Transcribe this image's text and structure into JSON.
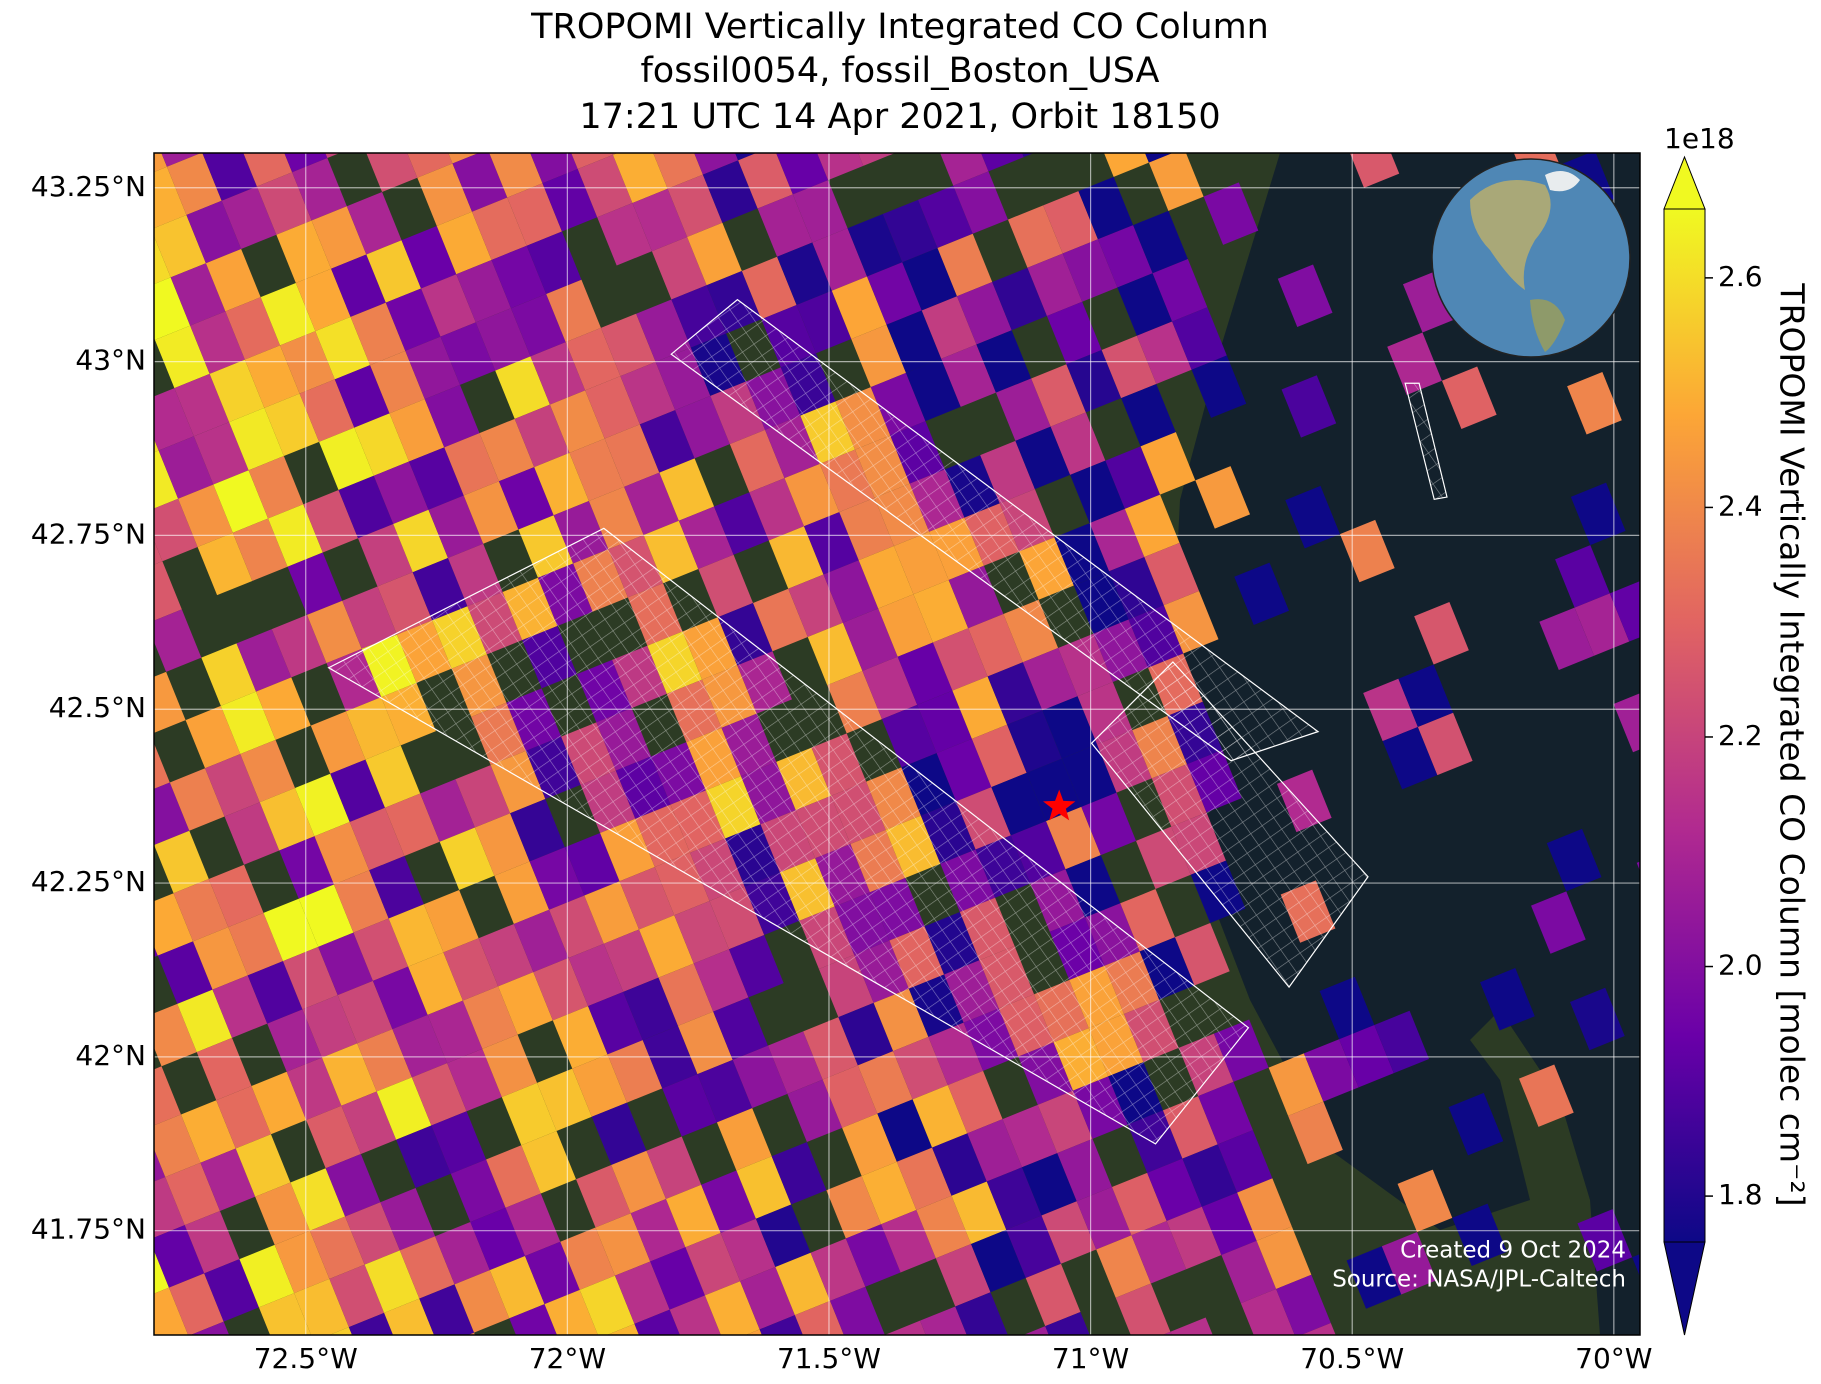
{
  "title_lines": [
    "TROPOMI Vertically Integrated CO Column",
    "fossil0054, fossil_Boston_USA",
    "17:21 UTC 14 Apr 2021, Orbit 18150"
  ],
  "map": {
    "xlim": [
      -72.79,
      -69.95
    ],
    "ylim": [
      41.6,
      43.3
    ],
    "xticks": [
      {
        "value": -72.5,
        "label": "72.5°W"
      },
      {
        "value": -72,
        "label": "72°W"
      },
      {
        "value": -71.5,
        "label": "71.5°W"
      },
      {
        "value": -71,
        "label": "71°W"
      },
      {
        "value": -70.5,
        "label": "70.5°W"
      },
      {
        "value": -70,
        "label": "70°W"
      }
    ],
    "yticks": [
      {
        "value": 41.75,
        "label": "41.75°N"
      },
      {
        "value": 42,
        "label": "42°N"
      },
      {
        "value": 42.25,
        "label": "42.25°N"
      },
      {
        "value": 42.5,
        "label": "42.5°N"
      },
      {
        "value": 42.75,
        "label": "42.75°N"
      },
      {
        "value": 43,
        "label": "43°N"
      },
      {
        "value": 43.25,
        "label": "43.25°N"
      }
    ],
    "grid": true,
    "site": {
      "lon": -71.06,
      "lat": 42.36,
      "color": "#ff0000"
    }
  },
  "colorbar": {
    "label": "TROPOMI Vertically Integrated CO Column [molec cm⁻²]",
    "exponent": "1e18",
    "clim": [
      1.76,
      2.66
    ],
    "ticks": [
      1.8,
      {
        "value": 2.0,
        "label": "2.0"
      },
      2.2,
      2.4,
      2.6
    ]
  },
  "credits": [
    "Created 9 Oct 2024",
    "Source: NASA/JPL-Caltech"
  ]
}
